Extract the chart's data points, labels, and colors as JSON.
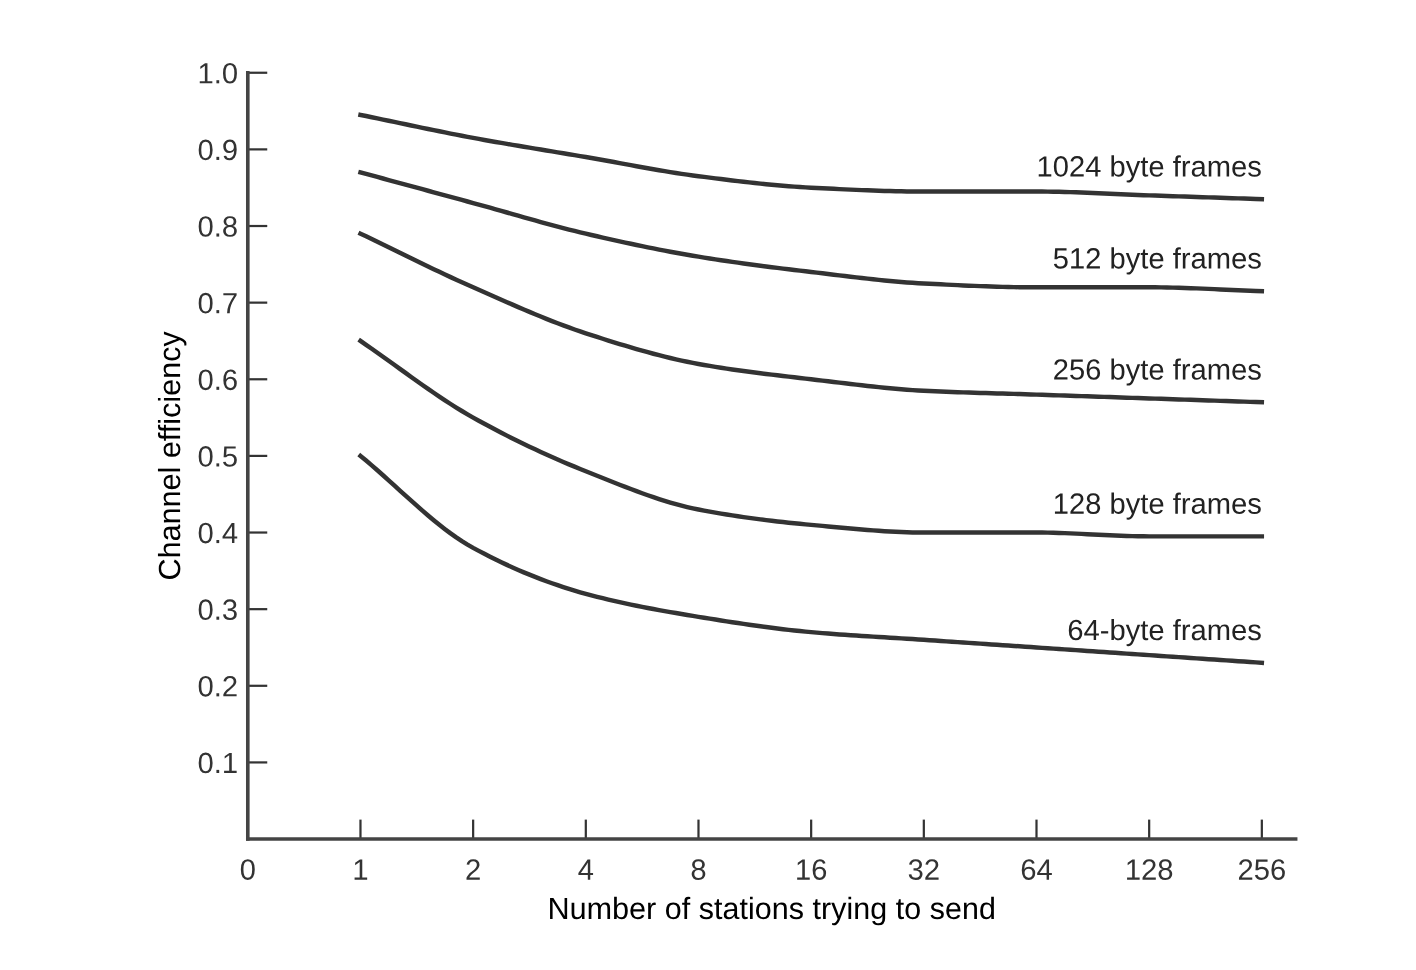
{
  "chart_data": {
    "type": "line",
    "xlabel": "Number of stations trying to send",
    "ylabel": "Channel efficiency",
    "categories": [
      "0",
      "1",
      "2",
      "4",
      "8",
      "16",
      "32",
      "64",
      "128",
      "256"
    ],
    "series": [
      {
        "name": "1024 byte frames",
        "color": "#333333",
        "values": [
          null,
          0.945,
          0.915,
          0.89,
          0.865,
          0.85,
          0.845,
          0.845,
          0.84,
          0.835
        ]
      },
      {
        "name": "512 byte frames",
        "color": "#333333",
        "values": [
          null,
          0.87,
          0.83,
          0.79,
          0.76,
          0.74,
          0.725,
          0.72,
          0.72,
          0.715
        ]
      },
      {
        "name": "256 byte frames",
        "color": "#333333",
        "values": [
          null,
          0.79,
          0.72,
          0.66,
          0.62,
          0.6,
          0.585,
          0.58,
          0.575,
          0.57
        ]
      },
      {
        "name": "128 byte frames",
        "color": "#333333",
        "values": [
          null,
          0.65,
          0.55,
          0.48,
          0.43,
          0.41,
          0.4,
          0.4,
          0.395,
          0.395
        ]
      },
      {
        "name": "64-byte frames",
        "color": "#333333",
        "values": [
          null,
          0.5,
          0.38,
          0.32,
          0.29,
          0.27,
          0.26,
          0.25,
          0.24,
          0.23
        ]
      }
    ],
    "ylim": [
      0,
      1.0
    ],
    "yticks": [
      0.1,
      0.2,
      0.3,
      0.4,
      0.5,
      0.6,
      0.7,
      0.8,
      0.9,
      {
        "value": 1.0,
        "label": "1.0"
      }
    ],
    "grid": false,
    "legend": false,
    "marker": "none",
    "line_style": "solid"
  }
}
